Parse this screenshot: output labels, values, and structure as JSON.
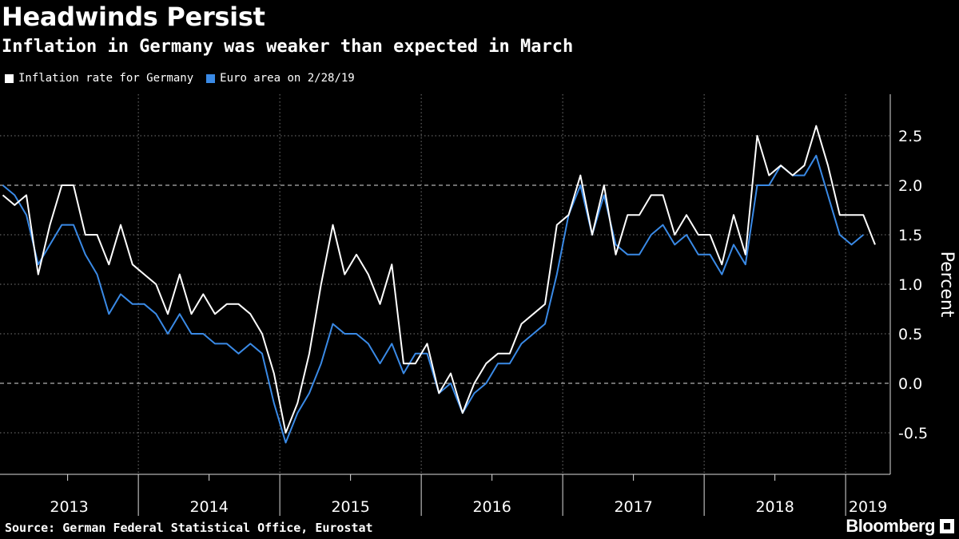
{
  "chart_data": {
    "type": "line",
    "title": "Headwinds Persist",
    "subtitle": "Inflation in Germany was weaker than expected in March",
    "ylabel": "Percent",
    "ylim": [
      -0.9,
      2.9
    ],
    "yticks": [
      -0.5,
      0.0,
      0.5,
      1.0,
      1.5,
      2.0,
      2.5
    ],
    "ytick_labels": [
      "-0.5",
      "0.0",
      "0.5",
      "1.0",
      "1.5",
      "2.0",
      "2.5"
    ],
    "year_labels": [
      "2013",
      "2014",
      "2015",
      "2016",
      "2017",
      "2018",
      "2019"
    ],
    "x_start": "2013-01",
    "legend_position": "top-left",
    "series": [
      {
        "name": "Inflation rate for Germany",
        "color": "#ffffff",
        "values": [
          1.9,
          1.8,
          1.9,
          1.1,
          1.6,
          2.0,
          2.0,
          1.5,
          1.5,
          1.2,
          1.6,
          1.2,
          1.1,
          1.0,
          0.7,
          1.1,
          0.7,
          0.9,
          0.7,
          0.8,
          0.8,
          0.7,
          0.5,
          0.1,
          -0.5,
          -0.2,
          0.3,
          1.0,
          1.6,
          1.1,
          1.3,
          1.1,
          0.8,
          1.2,
          0.2,
          0.2,
          0.4,
          -0.1,
          0.1,
          -0.3,
          0.0,
          0.2,
          0.3,
          0.3,
          0.6,
          0.7,
          0.8,
          1.6,
          1.7,
          2.1,
          1.5,
          2.0,
          1.3,
          1.7,
          1.7,
          1.9,
          1.9,
          1.5,
          1.7,
          1.5,
          1.5,
          1.2,
          1.7,
          1.3,
          2.5,
          2.1,
          2.2,
          2.1,
          2.2,
          2.6,
          2.2,
          1.7,
          1.7,
          1.7,
          1.4
        ]
      },
      {
        "name": "Euro area on 2/28/19",
        "color": "#3a8ae6",
        "values": [
          2.0,
          1.9,
          1.7,
          1.2,
          1.4,
          1.6,
          1.6,
          1.3,
          1.1,
          0.7,
          0.9,
          0.8,
          0.8,
          0.7,
          0.5,
          0.7,
          0.5,
          0.5,
          0.4,
          0.4,
          0.3,
          0.4,
          0.3,
          -0.2,
          -0.6,
          -0.3,
          -0.1,
          0.2,
          0.6,
          0.5,
          0.5,
          0.4,
          0.2,
          0.4,
          0.1,
          0.3,
          0.3,
          -0.1,
          0.0,
          -0.3,
          -0.1,
          0.0,
          0.2,
          0.2,
          0.4,
          0.5,
          0.6,
          1.1,
          1.7,
          2.0,
          1.5,
          1.9,
          1.4,
          1.3,
          1.3,
          1.5,
          1.6,
          1.4,
          1.5,
          1.3,
          1.3,
          1.1,
          1.4,
          1.2,
          2.0,
          2.0,
          2.2,
          2.1,
          2.1,
          2.3,
          1.9,
          1.5,
          1.4,
          1.5
        ]
      }
    ]
  },
  "source": "Source: German Federal Statistical Office, Eurostat",
  "brand": "Bloomberg",
  "colors": {
    "background": "#000000",
    "germany": "#ffffff",
    "euro_area": "#3a8ae6"
  }
}
